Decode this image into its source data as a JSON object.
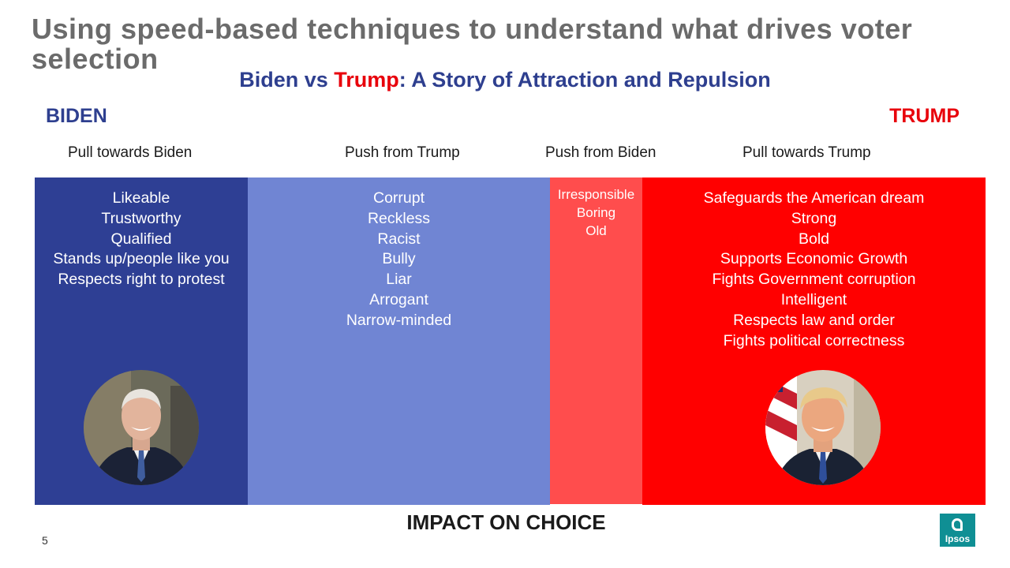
{
  "slide": {
    "title": "Using speed-based techniques to understand what drives voter selection",
    "subtitle": {
      "part1": "Biden vs ",
      "accent": "Trump",
      "part2": ": A Story of Attraction and Repulsion"
    },
    "left_label": "BIDEN",
    "right_label": "TRUMP",
    "columns": [
      {
        "heading": "Pull towards Biden",
        "items": [
          "Likeable",
          "Trustworthy",
          "Qualified",
          "Stands up/people like you",
          "Respects right to protest"
        ]
      },
      {
        "heading": "Push from Trump",
        "items": [
          "Corrupt",
          "Reckless",
          "Racist",
          "Bully",
          "Liar",
          "Arrogant",
          "Narrow-minded"
        ]
      },
      {
        "heading": "Push from Biden",
        "items": [
          "Irresponsible",
          "Boring",
          "Old"
        ]
      },
      {
        "heading": "Pull towards Trump",
        "items": [
          "Safeguards the American dream",
          "Strong",
          "Bold",
          "Supports Economic Growth",
          "Fights Government corruption",
          "Intelligent",
          "Respects law and order",
          "Fights political correctness"
        ]
      }
    ],
    "axis_label": "IMPACT ON CHOICE",
    "page_number": "5",
    "logo_text": "Ipsos"
  },
  "colors": {
    "biden_blue": "#2e3f94",
    "trump_push_blue": "#7085d3",
    "biden_push_red": "#ff4d4d",
    "trump_red": "#ff0000",
    "title_gray": "#6b6b6b",
    "logo_teal": "#0f8f94"
  },
  "icons": {
    "biden_portrait": "biden-portrait-photo",
    "trump_portrait": "trump-portrait-photo",
    "logo": "ipsos-logo"
  }
}
